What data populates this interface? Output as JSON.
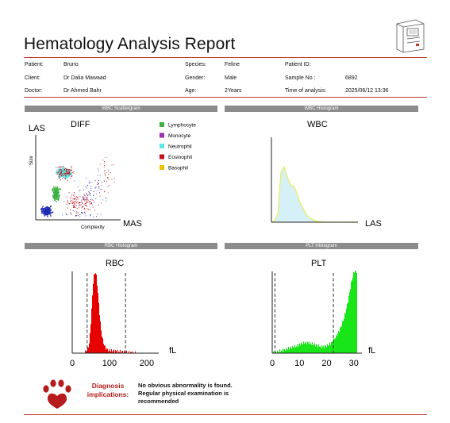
{
  "report": {
    "title": "Hematology Analysis Report"
  },
  "info": {
    "patient_label": "Patient:",
    "patient": "Bruno",
    "client_label": "Client:",
    "client": "Dr Dalia Mawaad",
    "doctor_label": "Doctor:",
    "doctor": "Dr Ahmed Bahr",
    "species_label": "Species:",
    "species": "Feline",
    "gender_label": "Gender:",
    "gender": "Male",
    "age_label": "Age:",
    "age": "2Years",
    "patient_id_label": "Patient ID:",
    "patient_id": "",
    "sample_label": "Sample No.:",
    "sample": "6892",
    "time_label": "Time of analysis:",
    "time": "2025/06/12 13:36"
  },
  "sections": {
    "wbc_scatter": "WBC Scattergram",
    "wbc_hist": "WBC Histogram",
    "rbc_hist": "RBC Histogram",
    "plt_hist": "PLT Histogram"
  },
  "scatter": {
    "title": "DIFF",
    "y_axis": "LAS",
    "x_axis": "MAS",
    "y_label": "Size",
    "x_label": "Complexity",
    "legend": [
      {
        "name": "Lymphocyte",
        "color": "#3cb043"
      },
      {
        "name": "Monocyte",
        "color": "#9b30b0"
      },
      {
        "name": "Neutrophil",
        "color": "#5fe6e6"
      },
      {
        "name": "Eosinophil",
        "color": "#c0141c"
      },
      {
        "name": "Basophil",
        "color": "#f2c200"
      }
    ]
  },
  "chart_data": [
    {
      "type": "area",
      "title": "WBC",
      "xlabel": "LAS",
      "x": [
        0,
        1,
        2,
        3,
        4,
        5,
        6,
        7,
        8,
        9,
        10,
        11,
        12,
        13,
        14,
        15,
        16,
        17,
        18,
        19,
        20,
        21,
        22,
        23,
        24,
        25,
        26,
        27
      ],
      "values": [
        0,
        2,
        15,
        85,
        93,
        75,
        62,
        60,
        48,
        32,
        22,
        12,
        7,
        4,
        2,
        1,
        0.5,
        0,
        0,
        0,
        0,
        0,
        0,
        0,
        0,
        0,
        0,
        0
      ],
      "color": "#d6f0f8",
      "line_color": "#e6ef5a"
    },
    {
      "type": "area",
      "title": "RBC",
      "xlabel": "fL",
      "xticks": [
        0,
        100,
        200
      ],
      "xlim": [
        0,
        230
      ],
      "x": [
        30,
        35,
        40,
        45,
        48,
        52,
        55,
        58,
        61,
        64,
        67,
        70,
        73,
        76,
        80,
        84,
        88,
        92,
        96,
        100,
        110,
        120,
        130,
        140,
        150,
        160,
        170
      ],
      "values": [
        0,
        2,
        5,
        12,
        30,
        60,
        85,
        96,
        100,
        94,
        80,
        62,
        45,
        30,
        18,
        11,
        7,
        5,
        4,
        3,
        3,
        2.5,
        2,
        1.5,
        1,
        0.5,
        0
      ],
      "discriminators": [
        40,
        143
      ],
      "color": "#e60000"
    },
    {
      "type": "area",
      "title": "PLT",
      "xlabel": "fL",
      "xticks": [
        0,
        10,
        20,
        30
      ],
      "xlim": [
        0,
        33
      ],
      "x": [
        0,
        1,
        2,
        3,
        4,
        5,
        6,
        7,
        8,
        9,
        10,
        11,
        12,
        13,
        14,
        15,
        16,
        17,
        18,
        19,
        20,
        21,
        22,
        23,
        24,
        25,
        26,
        27,
        28,
        29,
        30,
        31
      ],
      "values": [
        0,
        1,
        2,
        3,
        4,
        5,
        6,
        7,
        8,
        9,
        11,
        12,
        13,
        13,
        12,
        11,
        10,
        9,
        8,
        8,
        9,
        11,
        14,
        19,
        24,
        31,
        40,
        52,
        68,
        87,
        100,
        100
      ],
      "discriminators": [
        1,
        22.5
      ],
      "color": "#19e619"
    }
  ],
  "diagnosis": {
    "label": "Diagnosis implications:",
    "text": "No obvious abnormality is found. Regular physical examination is recommended"
  }
}
